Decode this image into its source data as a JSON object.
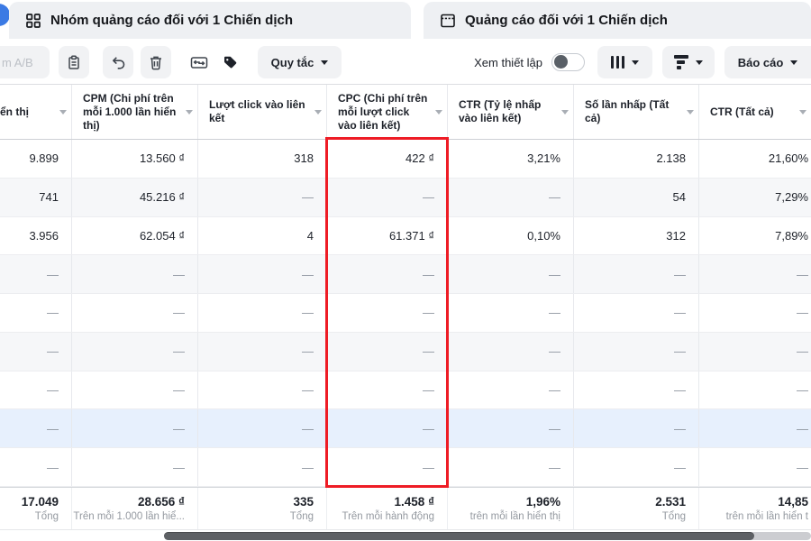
{
  "tabs": [
    {
      "label": "Nhóm quảng cáo đối với 1 Chiến dịch"
    },
    {
      "label": "Quảng cáo đối với 1 Chiến dịch"
    }
  ],
  "toolbar": {
    "ab_test_label": "m A/B",
    "rules_label": "Quy tắc",
    "view_setup_label": "Xem thiết lập",
    "report_label": "Báo cáo"
  },
  "table": {
    "columns": [
      {
        "label": "ển thị"
      },
      {
        "label": "CPM (Chi phí trên mỗi 1.000 lần hiển thị)"
      },
      {
        "label": "Lượt click vào liên kết"
      },
      {
        "label": "CPC (Chi phí trên mỗi lượt click vào liên kết)"
      },
      {
        "label": "CTR (Tỷ lệ nhấp vào liên kết)"
      },
      {
        "label": "Số lần nhấp (Tất cả)"
      },
      {
        "label": "CTR (Tất cả)"
      }
    ],
    "rows": [
      [
        "9.899",
        "13.560 ₫",
        "318",
        "422 ₫",
        "3,21%",
        "2.138",
        "21,60%"
      ],
      [
        "741",
        "45.216 ₫",
        "—",
        "—",
        "—",
        "54",
        "7,29%"
      ],
      [
        "3.956",
        "62.054 ₫",
        "4",
        "61.371 ₫",
        "0,10%",
        "312",
        "7,89%"
      ],
      [
        "—",
        "—",
        "—",
        "—",
        "—",
        "—",
        "—"
      ],
      [
        "—",
        "—",
        "—",
        "—",
        "—",
        "—",
        "—"
      ],
      [
        "—",
        "—",
        "—",
        "—",
        "—",
        "—",
        "—"
      ],
      [
        "—",
        "—",
        "—",
        "—",
        "—",
        "—",
        "—"
      ],
      [
        "—",
        "—",
        "—",
        "—",
        "—",
        "—",
        "—"
      ],
      [
        "—",
        "—",
        "—",
        "—",
        "—",
        "—",
        "—"
      ]
    ],
    "highlighted_row_index": 7,
    "totals": [
      {
        "value": "17.049",
        "label": "Tổng"
      },
      {
        "value": "28.656 ₫",
        "label": "Trên mỗi 1.000 lần hiể..."
      },
      {
        "value": "335",
        "label": "Tổng"
      },
      {
        "value": "1.458 ₫",
        "label": "Trên mỗi hành động"
      },
      {
        "value": "1,96%",
        "label": "trên mỗi lần hiển thị"
      },
      {
        "value": "2.531",
        "label": "Tổng"
      },
      {
        "value": "14,85",
        "label": "trên mỗi lần hiển t"
      }
    ]
  },
  "colors": {
    "highlight_box_red": "#ee1c25",
    "highlighted_row_blue": "#e7f0fd",
    "zebra_row_gray": "#f6f7f9",
    "tab_gray": "#eef0f3",
    "accent_blue_dot": "#3b7ae4"
  }
}
